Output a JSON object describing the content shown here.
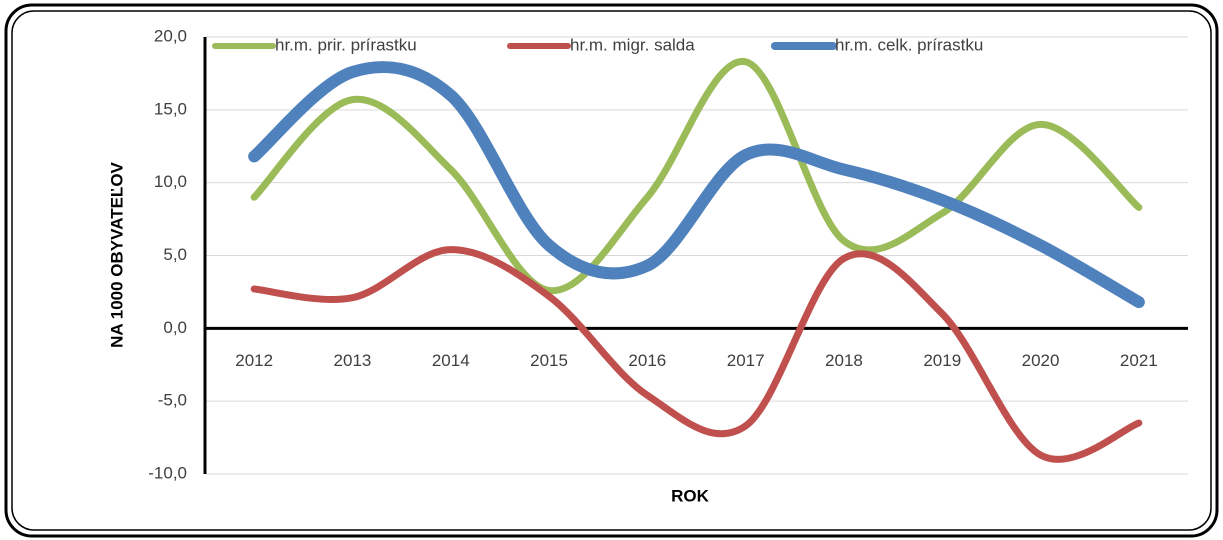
{
  "chart_data": {
    "type": "line",
    "xlabel": "ROK",
    "ylabel": "NA 1000 OBYVATEĽOV",
    "categories": [
      "2012",
      "2013",
      "2014",
      "2015",
      "2016",
      "2017",
      "2018",
      "2019",
      "2020",
      "2021"
    ],
    "series": [
      {
        "name": "hr.m. prir. prírastku",
        "color": "#9bbb59",
        "values": [
          9.0,
          15.7,
          10.9,
          2.6,
          9.0,
          18.3,
          6.0,
          7.9,
          14.0,
          8.3
        ]
      },
      {
        "name": "hr.m. migr. salda",
        "color": "#c0504d",
        "values": [
          2.7,
          2.1,
          5.4,
          2.2,
          -4.6,
          -6.7,
          4.8,
          1.0,
          -8.7,
          -6.5
        ]
      },
      {
        "name": "hr.m. celk. prírastku",
        "color": "#4f81bd",
        "values": [
          11.8,
          17.6,
          16.0,
          5.7,
          4.3,
          11.9,
          10.9,
          8.8,
          5.7,
          1.8
        ]
      }
    ],
    "ylim": [
      -10,
      20
    ],
    "yticks": [
      {
        "value": -10,
        "label": "-10,0"
      },
      {
        "value": -5,
        "label": "-5,0"
      },
      {
        "value": 0,
        "label": "0,0"
      },
      {
        "value": 5,
        "label": "5,0"
      },
      {
        "value": 10,
        "label": "10,0"
      },
      {
        "value": 15,
        "label": "15,0"
      },
      {
        "value": 20,
        "label": "20,0"
      }
    ],
    "grid": true,
    "legend": "top"
  }
}
